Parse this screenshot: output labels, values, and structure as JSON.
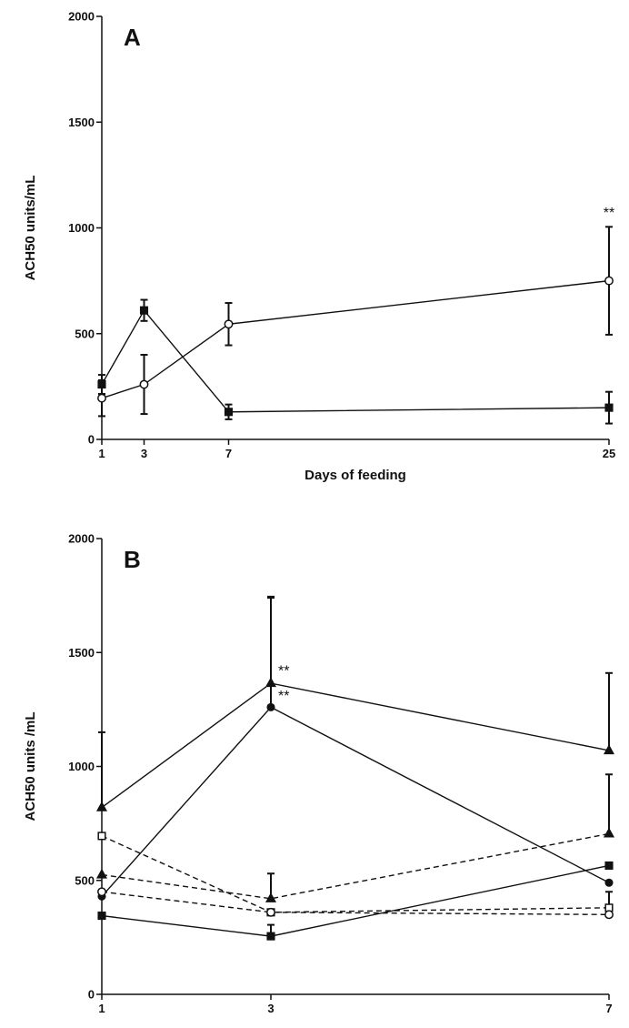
{
  "watermark": "",
  "chart_data": [
    {
      "type": "line",
      "panel_label": "A",
      "xlabel": "Days of feeding",
      "ylabel": "ACH50 units/mL",
      "x_ticks": [
        1,
        3,
        7,
        25
      ],
      "y_ticks": [
        0,
        500,
        1000,
        1500,
        2000
      ],
      "xlim": [
        1,
        25
      ],
      "ylim": [
        0,
        2000
      ],
      "grid": false,
      "series": [
        {
          "marker": "circle-open",
          "dash": "solid",
          "x": [
            1,
            3,
            7,
            25
          ],
          "y": [
            195,
            260,
            545,
            750
          ],
          "err": [
            85,
            140,
            100,
            255
          ]
        },
        {
          "marker": "square-filled",
          "dash": "solid",
          "x": [
            1,
            3,
            7,
            25
          ],
          "y": [
            260,
            610,
            130,
            150
          ],
          "err": [
            45,
            50,
            35,
            75
          ]
        }
      ],
      "annotations": [
        {
          "text": "**",
          "x": 25,
          "y": 1050
        }
      ]
    },
    {
      "type": "line",
      "panel_label": "B",
      "xlabel": "",
      "ylabel": "ACH50 units /mL",
      "x_ticks": [
        1,
        3,
        7
      ],
      "y_ticks": [
        0,
        500,
        1000,
        1500,
        2000
      ],
      "xlim": [
        1,
        7
      ],
      "ylim": [
        0,
        2000
      ],
      "grid": false,
      "series": [
        {
          "marker": "triangle-filled",
          "dash": "solid",
          "x": [
            1,
            3,
            7
          ],
          "y": [
            820,
            1365,
            1070
          ],
          "err": [
            330,
            380,
            340
          ]
        },
        {
          "marker": "circle-filled",
          "dash": "solid",
          "x": [
            1,
            3,
            7
          ],
          "y": [
            430,
            1260,
            490
          ],
          "err": [
            0,
            480,
            0
          ]
        },
        {
          "marker": "square-filled",
          "dash": "solid",
          "x": [
            1,
            3,
            7
          ],
          "y": [
            345,
            255,
            565
          ],
          "err": [
            0,
            50,
            0
          ]
        },
        {
          "marker": "square-open",
          "dash": "dashed",
          "x": [
            1,
            3,
            7
          ],
          "y": [
            695,
            360,
            380
          ],
          "err": [
            0,
            0,
            70
          ]
        },
        {
          "marker": "triangle-filled",
          "dash": "dashed",
          "x": [
            1,
            3,
            7
          ],
          "y": [
            525,
            420,
            705
          ],
          "err": [
            0,
            110,
            260
          ]
        },
        {
          "marker": "circle-open",
          "dash": "dashed",
          "x": [
            1,
            3,
            7
          ],
          "y": [
            450,
            360,
            350
          ],
          "err": [
            0,
            0,
            0
          ]
        }
      ],
      "annotations": [
        {
          "text": "**",
          "x": 3,
          "y": 1400
        },
        {
          "text": "**",
          "x": 3,
          "y": 1290
        }
      ]
    }
  ]
}
